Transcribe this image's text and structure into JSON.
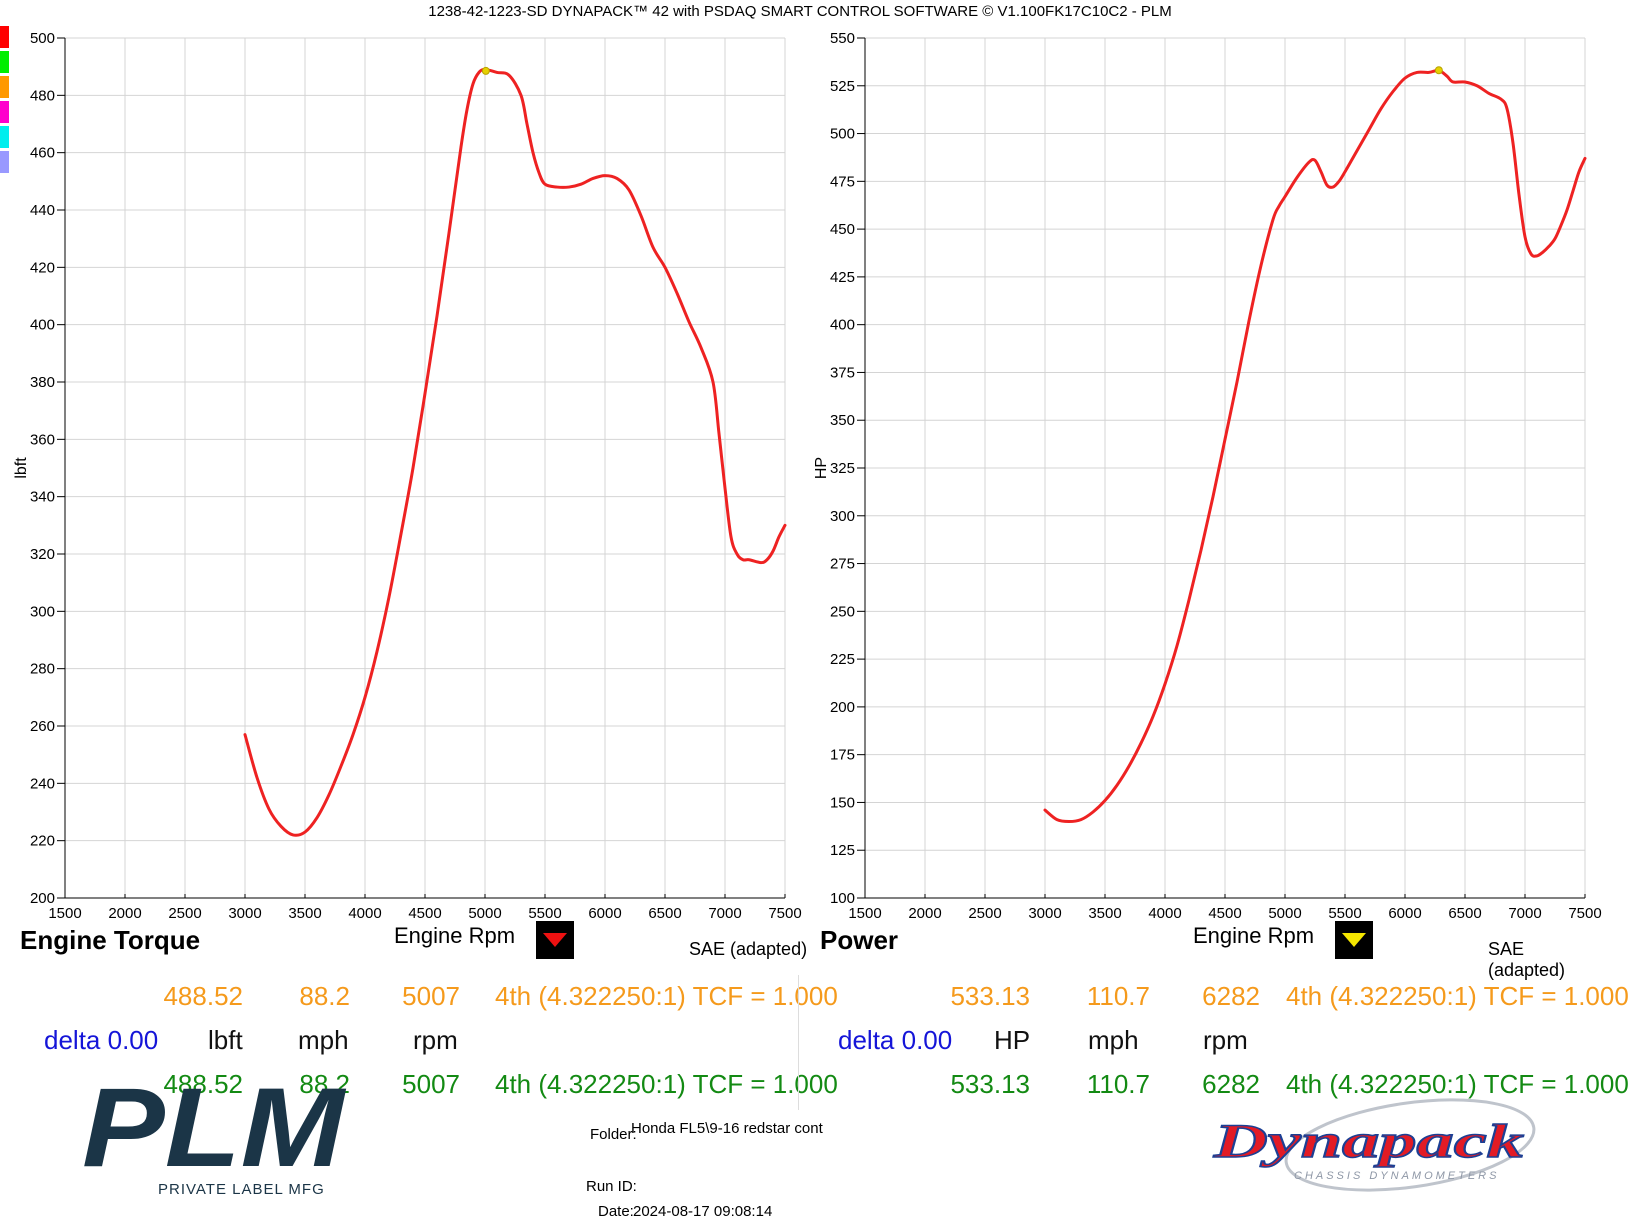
{
  "header": {
    "title": "1238-42-1223-SD DYNAPACK™ 42 with PSDAQ SMART CONTROL SOFTWARE © V1.100FK17C10C2 - PLM"
  },
  "swatches": [
    "#ff0000",
    "#00ee00",
    "#ff9900",
    "#ff00cc",
    "#00eeee",
    "#9999ff"
  ],
  "colors": {
    "curve": "#ee2222",
    "marker": "#e6d100",
    "orange": "#f59a1c",
    "green": "#138a13",
    "blue": "#1515d8",
    "grid": "#d4d4d4"
  },
  "chart_data": [
    {
      "type": "line",
      "title": "Engine Torque",
      "xlabel": "Engine Rpm",
      "ylabel": "lbft",
      "method_label": "SAE (adapted)",
      "cursor_color": "red",
      "xlim": [
        1500,
        7500
      ],
      "ylim": [
        200,
        500
      ],
      "xticks": [
        1500,
        2000,
        2500,
        3000,
        3500,
        4000,
        4500,
        5000,
        5500,
        6000,
        6500,
        7000,
        7500
      ],
      "yticks": [
        200,
        220,
        240,
        260,
        280,
        300,
        320,
        340,
        360,
        380,
        400,
        420,
        440,
        460,
        480,
        500
      ],
      "grid": true,
      "marker": {
        "x": 5007,
        "y": 488.52
      },
      "series": [
        {
          "x": [
            3000,
            3100,
            3200,
            3300,
            3400,
            3500,
            3600,
            3700,
            3800,
            3900,
            4000,
            4100,
            4200,
            4300,
            4400,
            4500,
            4600,
            4700,
            4800,
            4850,
            4900,
            4950,
            5000,
            5100,
            5200,
            5300,
            5350,
            5400,
            5450,
            5500,
            5600,
            5700,
            5800,
            5900,
            6000,
            6100,
            6200,
            6300,
            6400,
            6500,
            6600,
            6700,
            6800,
            6900,
            6950,
            7000,
            7050,
            7100,
            7150,
            7200,
            7300,
            7350,
            7400,
            7450,
            7500
          ],
          "values": [
            257,
            242,
            231,
            225,
            222,
            223,
            228,
            236,
            246,
            257,
            270,
            286,
            305,
            327,
            350,
            376,
            403,
            432,
            462,
            475,
            484,
            488,
            489,
            488,
            487,
            480,
            470,
            460,
            453,
            449,
            448,
            448,
            449,
            451,
            452,
            451,
            447,
            438,
            427,
            420,
            411,
            401,
            392,
            380,
            362,
            343,
            326,
            320,
            318,
            318,
            317,
            318,
            321,
            326,
            330
          ]
        }
      ]
    },
    {
      "type": "line",
      "title": "Power",
      "xlabel": "Engine Rpm",
      "ylabel": "HP",
      "method_label": "SAE (adapted)",
      "cursor_color": "yellow",
      "xlim": [
        1500,
        7500
      ],
      "ylim": [
        100,
        550
      ],
      "xticks": [
        1500,
        2000,
        2500,
        3000,
        3500,
        4000,
        4500,
        5000,
        5500,
        6000,
        6500,
        7000,
        7500
      ],
      "yticks": [
        100,
        125,
        150,
        175,
        200,
        225,
        250,
        275,
        300,
        325,
        350,
        375,
        400,
        425,
        450,
        475,
        500,
        525,
        550
      ],
      "grid": true,
      "marker": {
        "x": 6282,
        "y": 533.13
      },
      "series": [
        {
          "x": [
            3000,
            3100,
            3200,
            3300,
            3400,
            3500,
            3600,
            3700,
            3800,
            3900,
            4000,
            4100,
            4200,
            4300,
            4400,
            4500,
            4600,
            4700,
            4800,
            4900,
            4950,
            5000,
            5100,
            5200,
            5250,
            5300,
            5350,
            5400,
            5450,
            5500,
            5600,
            5700,
            5800,
            5900,
            6000,
            6100,
            6200,
            6282,
            6350,
            6400,
            6500,
            6600,
            6700,
            6800,
            6850,
            6900,
            6950,
            7000,
            7050,
            7100,
            7150,
            7200,
            7250,
            7300,
            7350,
            7400,
            7450,
            7500
          ],
          "values": [
            146,
            141,
            140,
            141,
            145,
            151,
            159,
            169,
            181,
            195,
            212,
            232,
            256,
            282,
            310,
            340,
            370,
            402,
            431,
            455,
            462,
            467,
            477,
            485,
            486,
            480,
            473,
            472,
            475,
            480,
            491,
            502,
            513,
            522,
            529,
            532,
            532,
            533,
            530,
            527,
            527,
            525,
            521,
            518,
            513,
            495,
            468,
            446,
            437,
            436,
            438,
            441,
            445,
            452,
            460,
            470,
            480,
            487
          ]
        }
      ]
    }
  ],
  "torque_panel": {
    "title": "Engine Torque",
    "xlabel": "Engine Rpm",
    "method": "SAE (adapted)",
    "row1": {
      "value": "488.52",
      "speed": "88.2",
      "rpm": "5007",
      "gear": "4th (4.322250:1) TCF = 1.000"
    },
    "units": {
      "delta": "delta 0.00",
      "value": "lbft",
      "speed": "mph",
      "rpm": "rpm"
    },
    "row2": {
      "value": "488.52",
      "speed": "88.2",
      "rpm": "5007",
      "gear": "4th (4.322250:1) TCF = 1.000"
    }
  },
  "power_panel": {
    "title": "Power",
    "xlabel": "Engine Rpm",
    "method": "SAE (adapted)",
    "row1": {
      "value": "533.13",
      "speed": "110.7",
      "rpm": "6282",
      "gear": "4th (4.322250:1) TCF = 1.000"
    },
    "units": {
      "delta": "delta 0.00",
      "value": "HP",
      "speed": "mph",
      "rpm": "rpm"
    },
    "row2": {
      "value": "533.13",
      "speed": "110.7",
      "rpm": "6282",
      "gear": "4th (4.322250:1) TCF = 1.000"
    }
  },
  "footer": {
    "folder_label": "Folder:",
    "folder_value": "Honda FL5\\9-16 redstar cont",
    "run_label": "Run ID:",
    "date_label": "Date:",
    "date_value": "2024-08-17 09:08:14"
  },
  "logos": {
    "plm_text": "PLM",
    "plm_sub": "PRIVATE LABEL MFG",
    "dynapack_text": "Dynapack",
    "dynapack_sub": "CHASSIS DYNAMOMETERS"
  }
}
